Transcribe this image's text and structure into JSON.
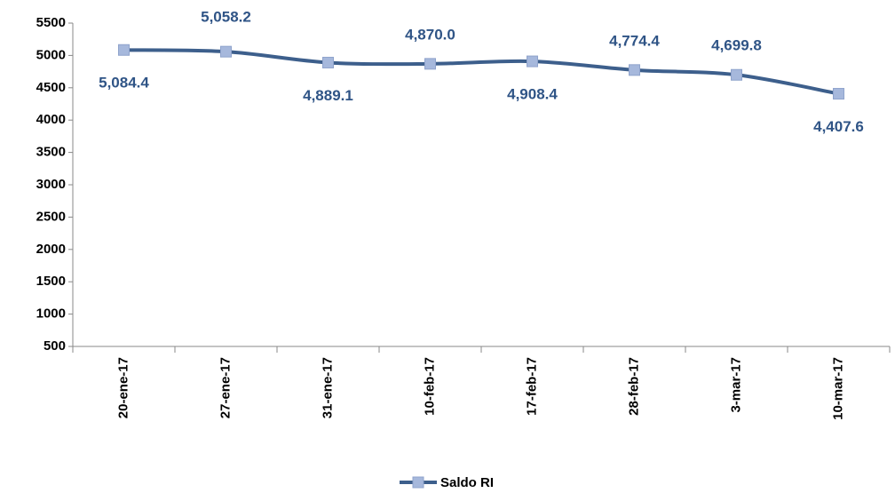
{
  "chart_data": {
    "type": "line",
    "categories": [
      "20-ene-17",
      "27-ene-17",
      "31-ene-17",
      "10-feb-17",
      "17-feb-17",
      "28-feb-17",
      "3-mar-17",
      "10-mar-17"
    ],
    "series": [
      {
        "name": "Saldo RI",
        "color": "#3d5f8c",
        "marker_color": "#a6b8dc",
        "values": [
          5084.4,
          5058.2,
          4889.1,
          4870.0,
          4908.4,
          4774.4,
          4699.8,
          4407.6
        ],
        "value_labels": [
          "5,084.4",
          "5,058.2",
          "4,889.1",
          "4,870.0",
          "4,908.4",
          "4,774.4",
          "4,699.8",
          "4,407.6"
        ]
      }
    ],
    "ylim": [
      500,
      5500
    ],
    "yticks": [
      500,
      1000,
      1500,
      2000,
      2500,
      3000,
      3500,
      4000,
      4500,
      5000,
      5500
    ],
    "grid": false,
    "legend": "bottom"
  }
}
